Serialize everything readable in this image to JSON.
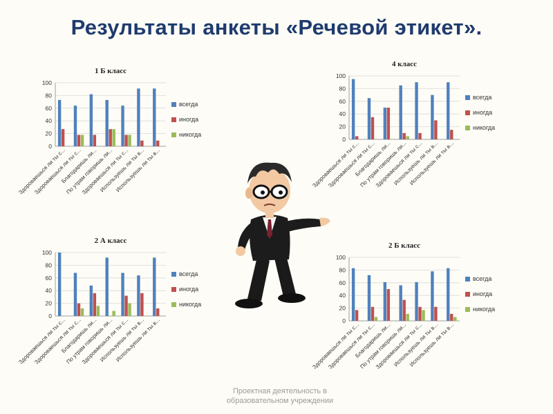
{
  "title": "Результаты анкеты «Речевой этикет».",
  "footer": {
    "line1": "Проектная деятельность в",
    "line2": "образовательном учреждении"
  },
  "colors": {
    "title": "#1f3b6e",
    "vsegda": "#4f81bd",
    "inogda": "#c0504d",
    "nikogda": "#9bbb59"
  },
  "chart_data": [
    {
      "type": "bar",
      "title": "1 Б класс",
      "categories": [
        "Здороваешься ли ты с...",
        "Здороваешься ли ты с...",
        "Благодаришь ли...",
        "По утрам говоришь ли...",
        "Здороваешься ли ты с...",
        "Используешь ли ты в...",
        "Используешь ли ты в..."
      ],
      "ylim": [
        0,
        100
      ],
      "yticks": [
        0,
        20,
        40,
        60,
        80,
        100
      ],
      "legend": "right",
      "series": [
        {
          "name": "всегда",
          "values": [
            73,
            64,
            82,
            73,
            64,
            91,
            91
          ]
        },
        {
          "name": "иногда",
          "values": [
            27,
            18,
            18,
            27,
            18,
            9,
            9
          ]
        },
        {
          "name": "никогда",
          "values": [
            0,
            18,
            0,
            27,
            18,
            0,
            0
          ]
        }
      ]
    },
    {
      "type": "bar",
      "title": "4 класс",
      "categories": [
        "Здороваешься ли ты с...",
        "Здороваешься ли ты с...",
        "Благодаришь ли...",
        "По утрам говоришь ли...",
        "Здороваешься ли ты с...",
        "Используешь ли ты в...",
        "Используешь ли ты в..."
      ],
      "ylim": [
        0,
        100
      ],
      "yticks": [
        0,
        20,
        40,
        60,
        80,
        100
      ],
      "legend": "right",
      "series": [
        {
          "name": "всегда",
          "values": [
            95,
            65,
            50,
            85,
            90,
            70,
            90
          ]
        },
        {
          "name": "иногда",
          "values": [
            5,
            35,
            50,
            10,
            10,
            30,
            15
          ]
        },
        {
          "name": "никогда",
          "values": [
            0,
            0,
            0,
            5,
            0,
            0,
            0
          ]
        }
      ]
    },
    {
      "type": "bar",
      "title": "2 А класс",
      "categories": [
        "Здороваешься ли ты с...",
        "Здороваешься ли ты с...",
        "Благодаришь ли...",
        "По утрам говоришь ли...",
        "Здороваешься ли ты с...",
        "Используешь ли ты в...",
        "Используешь ли ты в..."
      ],
      "ylim": [
        0,
        100
      ],
      "yticks": [
        0,
        20,
        40,
        60,
        80,
        100
      ],
      "legend": "right",
      "series": [
        {
          "name": "всегда",
          "values": [
            100,
            68,
            48,
            92,
            68,
            64,
            92
          ]
        },
        {
          "name": "иногда",
          "values": [
            0,
            20,
            36,
            0,
            32,
            36,
            12
          ]
        },
        {
          "name": "никогда",
          "values": [
            0,
            12,
            16,
            8,
            20,
            0,
            0
          ]
        }
      ]
    },
    {
      "type": "bar",
      "title": "2 Б класс",
      "categories": [
        "Здороваешься ли ты с...",
        "Здороваешься ли ты с...",
        "Благодаришь ли...",
        "По утрам говоришь ли...",
        "Здороваешься ли ты с...",
        "Используешь ли ты в...",
        "Используешь ли ты в..."
      ],
      "ylim": [
        0,
        100
      ],
      "yticks": [
        0,
        20,
        40,
        60,
        80,
        100
      ],
      "legend": "right",
      "series": [
        {
          "name": "всегда",
          "values": [
            83,
            72,
            61,
            56,
            61,
            78,
            83
          ]
        },
        {
          "name": "иногда",
          "values": [
            17,
            22,
            50,
            33,
            22,
            22,
            11
          ]
        },
        {
          "name": "никогда",
          "values": [
            0,
            6,
            0,
            11,
            17,
            0,
            6
          ]
        }
      ]
    }
  ]
}
